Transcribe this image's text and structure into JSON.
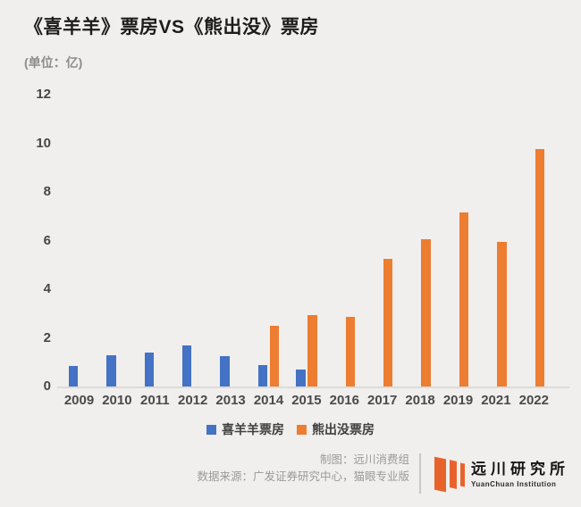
{
  "colors": {
    "background": "#f0efed",
    "bar_blue": "#4472c4",
    "bar_orange": "#ed7d31",
    "logo_orange": "#e8632c",
    "title_text": "#1c1c1c",
    "muted_text": "#9b9a98",
    "axis_text": "#474747"
  },
  "chart_data": {
    "type": "bar",
    "title": "《喜羊羊》票房VS《熊出没》票房",
    "unit_label": "(单位：亿)",
    "categories": [
      "2009",
      "2010",
      "2011",
      "2012",
      "2013",
      "2014",
      "2015",
      "2016",
      "2017",
      "2018",
      "2019",
      "2021",
      "2022"
    ],
    "series": [
      {
        "name": "喜羊羊票房",
        "color": "#4472c4",
        "values": [
          0.85,
          1.28,
          1.4,
          1.67,
          1.25,
          0.87,
          0.68,
          null,
          null,
          null,
          null,
          null,
          null
        ]
      },
      {
        "name": "熊出没票房",
        "color": "#ed7d31",
        "values": [
          null,
          null,
          null,
          null,
          null,
          2.48,
          2.95,
          2.88,
          5.23,
          6.05,
          7.17,
          5.95,
          9.77
        ]
      }
    ],
    "ylim": [
      0,
      12
    ],
    "yticks": [
      0,
      2,
      4,
      6,
      8,
      10,
      12
    ],
    "grid": false,
    "legend_position": "bottom"
  },
  "footer": {
    "credit": "制图：远川消费组",
    "source": "数据来源：广发证券研究中心，猫眼专业版",
    "logo_cn": "远川研究所",
    "logo_en": "YuanChuan Institution"
  }
}
